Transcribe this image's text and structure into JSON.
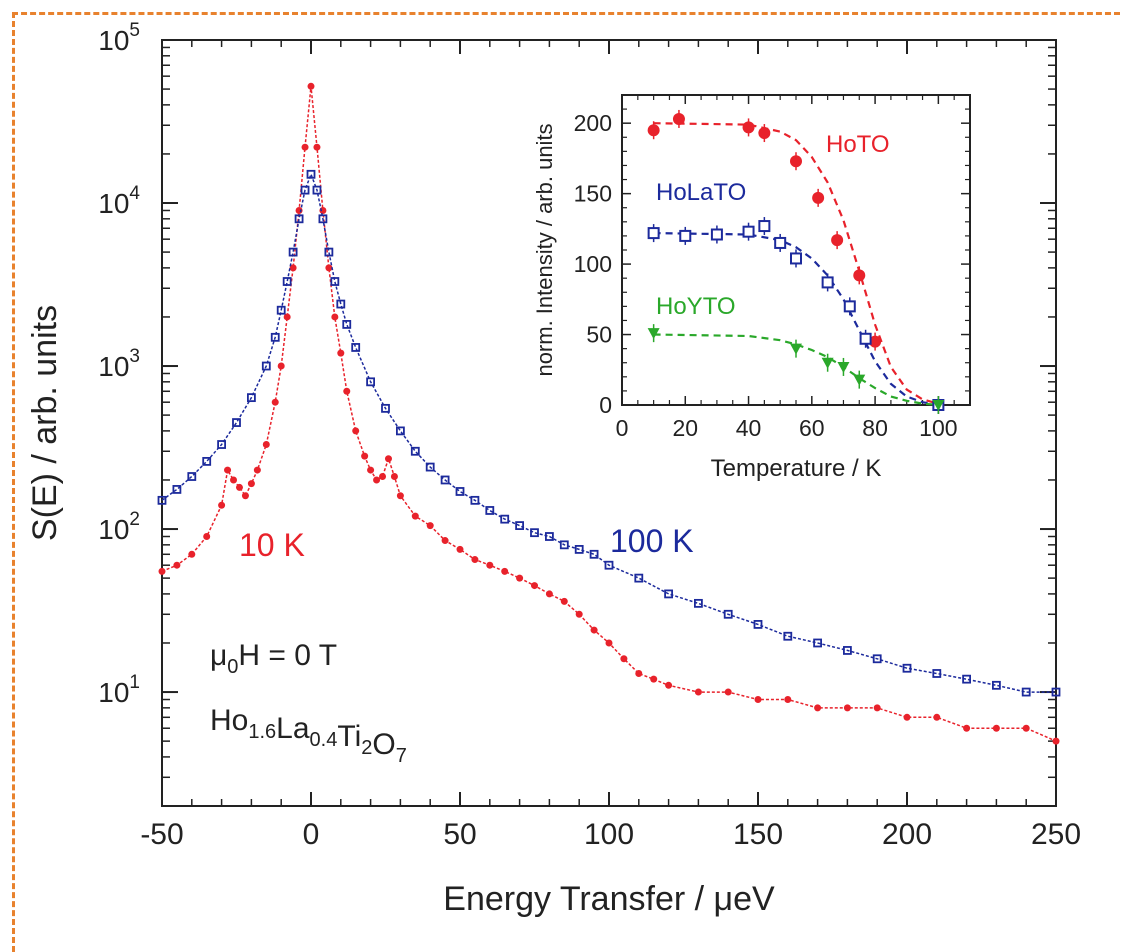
{
  "colors": {
    "red": "#e8222b",
    "blue": "#1c2a9c",
    "green": "#2aa82a",
    "frame": "#e8822e"
  },
  "chart_data": [
    {
      "type": "line",
      "xlabel": "Energy Transfer / μeV",
      "ylabel": "S(E) / arb. units",
      "xlim": [
        -50,
        250
      ],
      "ylim": [
        2,
        100000
      ],
      "yscale": "log",
      "xticks": [
        "-50",
        "0",
        "50",
        "100",
        "150",
        "200",
        "250"
      ],
      "yticks_mantissa": "10",
      "yticks_exp": [
        "1",
        "2",
        "3",
        "4",
        "5"
      ],
      "annotations": {
        "field_prefix": "μ",
        "field_sub": "0",
        "field_suffix": "H = 0 T",
        "compound": [
          {
            "t": "Ho",
            "s": ""
          },
          {
            "t": "",
            "s": "1.6"
          },
          {
            "t": "La",
            "s": ""
          },
          {
            "t": "",
            "s": "0.4"
          },
          {
            "t": "Ti",
            "s": ""
          },
          {
            "t": "",
            "s": "2"
          },
          {
            "t": "O",
            "s": ""
          },
          {
            "t": "",
            "s": "7"
          }
        ]
      },
      "series": [
        {
          "name": "10 K",
          "color": "red",
          "marker": "filled-circle",
          "points": [
            [
              -50,
              55
            ],
            [
              -45,
              60
            ],
            [
              -40,
              70
            ],
            [
              -35,
              90
            ],
            [
              -30,
              140
            ],
            [
              -28,
              230
            ],
            [
              -26,
              200
            ],
            [
              -24,
              180
            ],
            [
              -22,
              160
            ],
            [
              -20,
              190
            ],
            [
              -18,
              230
            ],
            [
              -15,
              330
            ],
            [
              -12,
              600
            ],
            [
              -10,
              1000
            ],
            [
              -8,
              2000
            ],
            [
              -6,
              4000
            ],
            [
              -4,
              9000
            ],
            [
              -2,
              22000
            ],
            [
              0,
              52000
            ],
            [
              2,
              22000
            ],
            [
              4,
              9000
            ],
            [
              6,
              4000
            ],
            [
              8,
              2000
            ],
            [
              10,
              1200
            ],
            [
              12,
              700
            ],
            [
              15,
              400
            ],
            [
              18,
              280
            ],
            [
              20,
              230
            ],
            [
              22,
              200
            ],
            [
              24,
              210
            ],
            [
              26,
              270
            ],
            [
              28,
              210
            ],
            [
              30,
              160
            ],
            [
              35,
              120
            ],
            [
              40,
              105
            ],
            [
              45,
              85
            ],
            [
              50,
              75
            ],
            [
              55,
              65
            ],
            [
              60,
              60
            ],
            [
              65,
              55
            ],
            [
              70,
              50
            ],
            [
              75,
              45
            ],
            [
              80,
              40
            ],
            [
              85,
              36
            ],
            [
              90,
              30
            ],
            [
              95,
              24
            ],
            [
              100,
              20
            ],
            [
              105,
              16
            ],
            [
              110,
              13
            ],
            [
              115,
              12
            ],
            [
              120,
              11
            ],
            [
              130,
              10
            ],
            [
              140,
              10
            ],
            [
              150,
              9
            ],
            [
              160,
              9
            ],
            [
              170,
              8
            ],
            [
              180,
              8
            ],
            [
              190,
              8
            ],
            [
              200,
              7
            ],
            [
              210,
              7
            ],
            [
              220,
              6
            ],
            [
              230,
              6
            ],
            [
              240,
              6
            ],
            [
              250,
              5
            ]
          ]
        },
        {
          "name": "100 K",
          "color": "blue",
          "marker": "open-square",
          "points": [
            [
              -50,
              150
            ],
            [
              -45,
              175
            ],
            [
              -40,
              210
            ],
            [
              -35,
              260
            ],
            [
              -30,
              330
            ],
            [
              -25,
              450
            ],
            [
              -20,
              640
            ],
            [
              -15,
              1000
            ],
            [
              -12,
              1500
            ],
            [
              -10,
              2200
            ],
            [
              -8,
              3300
            ],
            [
              -6,
              5000
            ],
            [
              -4,
              8000
            ],
            [
              -2,
              12000
            ],
            [
              0,
              15000
            ],
            [
              2,
              12000
            ],
            [
              4,
              8000
            ],
            [
              6,
              5000
            ],
            [
              8,
              3300
            ],
            [
              10,
              2400
            ],
            [
              12,
              1800
            ],
            [
              15,
              1300
            ],
            [
              20,
              800
            ],
            [
              25,
              550
            ],
            [
              30,
              400
            ],
            [
              35,
              300
            ],
            [
              40,
              240
            ],
            [
              45,
              200
            ],
            [
              50,
              170
            ],
            [
              55,
              150
            ],
            [
              60,
              130
            ],
            [
              65,
              115
            ],
            [
              70,
              105
            ],
            [
              75,
              95
            ],
            [
              80,
              90
            ],
            [
              85,
              80
            ],
            [
              90,
              75
            ],
            [
              95,
              70
            ],
            [
              100,
              60
            ],
            [
              110,
              50
            ],
            [
              120,
              40
            ],
            [
              130,
              35
            ],
            [
              140,
              30
            ],
            [
              150,
              26
            ],
            [
              160,
              22
            ],
            [
              170,
              20
            ],
            [
              180,
              18
            ],
            [
              190,
              16
            ],
            [
              200,
              14
            ],
            [
              210,
              13
            ],
            [
              220,
              12
            ],
            [
              230,
              11
            ],
            [
              240,
              10
            ],
            [
              250,
              10
            ]
          ]
        }
      ]
    },
    {
      "type": "scatter",
      "xlabel": "Temperature / K",
      "ylabel": "norm. Intensity / arb. units",
      "xlim": [
        0,
        110
      ],
      "ylim": [
        0,
        220
      ],
      "xticks": [
        "0",
        "20",
        "40",
        "60",
        "80",
        "100"
      ],
      "yticks": [
        "0",
        "50",
        "100",
        "150",
        "200"
      ],
      "series": [
        {
          "name": "HoTO",
          "color": "red",
          "marker": "filled-circle",
          "points": [
            [
              10,
              195
            ],
            [
              18,
              203
            ],
            [
              40,
              197
            ],
            [
              45,
              193
            ],
            [
              55,
              173
            ],
            [
              62,
              147
            ],
            [
              68,
              117
            ],
            [
              75,
              92
            ],
            [
              80,
              45
            ],
            [
              100,
              0
            ]
          ]
        },
        {
          "name": "HoLaTO",
          "color": "blue",
          "marker": "open-square",
          "points": [
            [
              10,
              122
            ],
            [
              20,
              120
            ],
            [
              30,
              121
            ],
            [
              40,
              123
            ],
            [
              45,
              127
            ],
            [
              50,
              115
            ],
            [
              55,
              104
            ],
            [
              65,
              87
            ],
            [
              72,
              70
            ],
            [
              77,
              47
            ],
            [
              100,
              0
            ]
          ]
        },
        {
          "name": "HoYTO",
          "color": "green",
          "marker": "filled-triangle",
          "points": [
            [
              10,
              51
            ],
            [
              55,
              40
            ],
            [
              65,
              30
            ],
            [
              70,
              27
            ],
            [
              75,
              18
            ],
            [
              100,
              0
            ]
          ]
        }
      ],
      "fits": [
        {
          "color": "red",
          "points": [
            [
              10,
              200
            ],
            [
              40,
              199
            ],
            [
              50,
              194
            ],
            [
              55,
              188
            ],
            [
              60,
              176
            ],
            [
              65,
              158
            ],
            [
              70,
              131
            ],
            [
              75,
              95
            ],
            [
              80,
              57
            ],
            [
              85,
              27
            ],
            [
              90,
              11
            ],
            [
              95,
              4
            ],
            [
              100,
              1
            ]
          ]
        },
        {
          "color": "blue",
          "points": [
            [
              10,
              122
            ],
            [
              40,
              121
            ],
            [
              50,
              117
            ],
            [
              55,
              112
            ],
            [
              60,
              104
            ],
            [
              65,
              92
            ],
            [
              70,
              75
            ],
            [
              75,
              53
            ],
            [
              80,
              31
            ],
            [
              85,
              15
            ],
            [
              90,
              6
            ],
            [
              95,
              2
            ],
            [
              100,
              0
            ]
          ]
        },
        {
          "color": "green",
          "points": [
            [
              10,
              50
            ],
            [
              40,
              49
            ],
            [
              50,
              46
            ],
            [
              55,
              43
            ],
            [
              60,
              39
            ],
            [
              65,
              34
            ],
            [
              70,
              27
            ],
            [
              75,
              19
            ],
            [
              80,
              12
            ],
            [
              85,
              6
            ],
            [
              90,
              3
            ],
            [
              95,
              1
            ],
            [
              100,
              0
            ]
          ]
        }
      ]
    }
  ]
}
